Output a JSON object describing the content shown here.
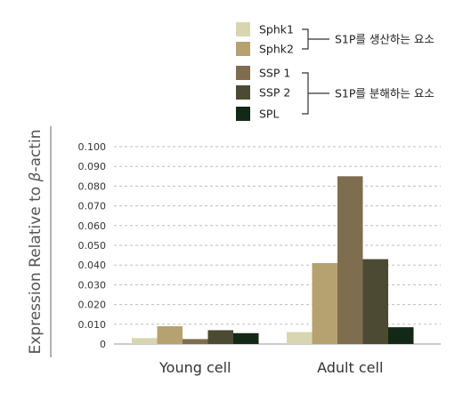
{
  "chart_data": {
    "type": "bar",
    "categories": [
      "Young cell",
      "Adult cell"
    ],
    "series": [
      {
        "name": "Sphk1",
        "color": "#d8d6b0",
        "values": [
          0.003,
          0.006
        ]
      },
      {
        "name": "Sphk2",
        "color": "#b5a270",
        "values": [
          0.009,
          0.041
        ]
      },
      {
        "name": "SSP 1",
        "color": "#7f6d4f",
        "values": [
          0.0025,
          0.085
        ]
      },
      {
        "name": "SSP 2",
        "color": "#4d4a33",
        "values": [
          0.007,
          0.043
        ]
      },
      {
        "name": "SPL",
        "color": "#132817",
        "values": [
          0.0055,
          0.0085
        ]
      }
    ],
    "ylabel_main": "Expression Relative to ",
    "ylabel_greek": "β",
    "ylabel_suffix": "-actin",
    "ylim": [
      0,
      0.1
    ],
    "yticks": [
      "0",
      "0.010",
      "0.020",
      "0.030",
      "0.040",
      "0.050",
      "0.060",
      "0.070",
      "0.080",
      "0.090",
      "0.100"
    ],
    "grid": true,
    "legend_groups": [
      {
        "label": "S1P를 생산하는 요소",
        "series_indices": [
          0,
          1
        ]
      },
      {
        "label": "S1P를 분해하는 요소",
        "series_indices": [
          2,
          3,
          4
        ]
      }
    ]
  }
}
